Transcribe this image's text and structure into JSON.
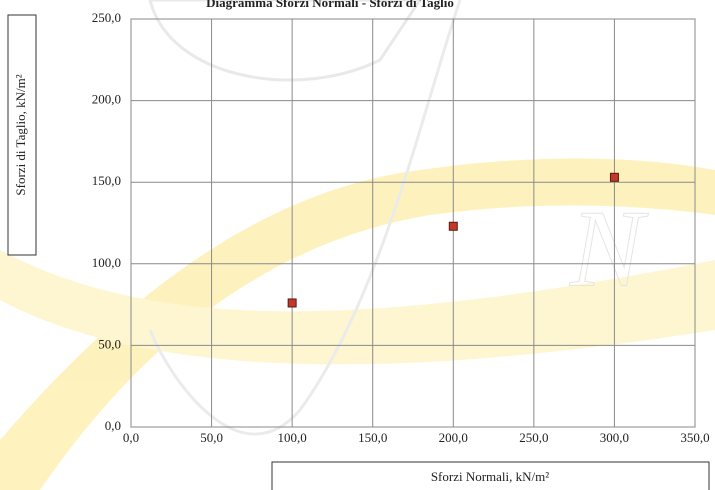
{
  "chart_data": {
    "type": "scatter",
    "title": "Diagramma Sforzi Normali - Sforzi di Taglio",
    "x_label": "Sforzi Normali, kN/m²",
    "y_label": "Sforzi di Taglio, kN/m²",
    "x": [
      100,
      200,
      300
    ],
    "values": [
      76,
      123,
      153
    ],
    "color": "#c0392b",
    "xlim": [
      0,
      350
    ],
    "ylim": [
      0,
      250
    ],
    "xticks": [
      {
        "value": 0,
        "label": "0,0"
      },
      {
        "value": 50,
        "label": "50,0"
      },
      {
        "value": 100,
        "label": "100,0"
      },
      {
        "value": 150,
        "label": "150,0"
      },
      {
        "value": 200,
        "label": "200,0"
      },
      {
        "value": 250,
        "label": "250,0"
      },
      {
        "value": 300,
        "label": "300,0"
      },
      {
        "value": 350,
        "label": "350,0"
      }
    ],
    "yticks": [
      {
        "value": 0,
        "label": "0,0"
      },
      {
        "value": 50,
        "label": "50,0"
      },
      {
        "value": 100,
        "label": "100,0"
      },
      {
        "value": 150,
        "label": "150,0"
      },
      {
        "value": 200,
        "label": "200,0"
      },
      {
        "value": 250,
        "label": "250,0"
      }
    ],
    "grid": true
  }
}
